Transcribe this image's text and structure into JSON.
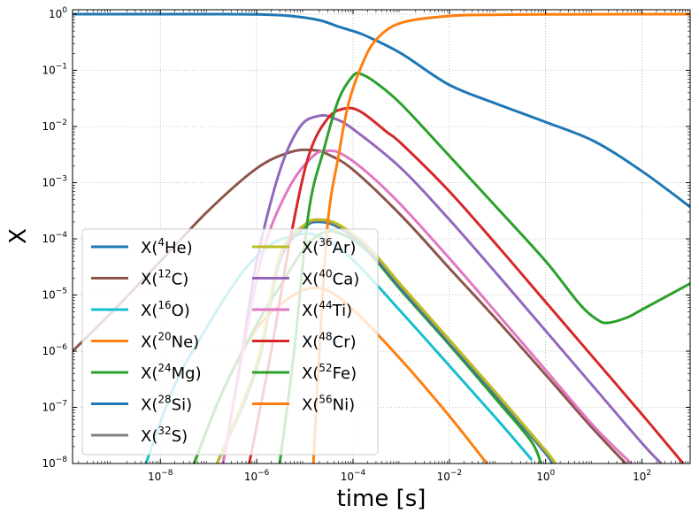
{
  "chart_data": {
    "type": "line",
    "xlabel": "time [s]",
    "ylabel": "X",
    "xscale": "log",
    "yscale": "log",
    "xlim": [
      1.5e-10,
      1000
    ],
    "ylim": [
      1e-08,
      1.2
    ],
    "grid": true,
    "legend_position": "lower-left",
    "legend_columns": 2,
    "x_ticks": [
      {
        "base": "10",
        "exp": "−8",
        "value": 1e-08
      },
      {
        "base": "10",
        "exp": "−6",
        "value": 1e-06
      },
      {
        "base": "10",
        "exp": "−4",
        "value": 0.0001
      },
      {
        "base": "10",
        "exp": "−2",
        "value": 0.01
      },
      {
        "base": "10",
        "exp": "0",
        "value": 1
      },
      {
        "base": "10",
        "exp": "2",
        "value": 100
      }
    ],
    "y_ticks": [
      {
        "base": "10",
        "exp": "−8",
        "value": 1e-08
      },
      {
        "base": "10",
        "exp": "−7",
        "value": 1e-07
      },
      {
        "base": "10",
        "exp": "−6",
        "value": 1e-06
      },
      {
        "base": "10",
        "exp": "−5",
        "value": 1e-05
      },
      {
        "base": "10",
        "exp": "−4",
        "value": 0.0001
      },
      {
        "base": "10",
        "exp": "−3",
        "value": 0.001
      },
      {
        "base": "10",
        "exp": "−2",
        "value": 0.01
      },
      {
        "base": "10",
        "exp": "−1",
        "value": 0.1
      },
      {
        "base": "10",
        "exp": "0",
        "value": 1
      }
    ],
    "series": [
      {
        "name_prefix": "X(",
        "mass": "4",
        "element": "He)",
        "color": "#1f77b4",
        "points": [
          [
            1.5e-10,
            1.0
          ],
          [
            1e-07,
            1.0
          ],
          [
            1e-06,
            0.99
          ],
          [
            5e-06,
            0.93
          ],
          [
            2e-05,
            0.78
          ],
          [
            5e-05,
            0.6
          ],
          [
            0.0001,
            0.5
          ],
          [
            0.0002,
            0.4
          ],
          [
            0.001,
            0.2
          ],
          [
            0.01,
            0.055
          ],
          [
            0.1,
            0.025
          ],
          [
            1,
            0.012
          ],
          [
            10,
            0.0055
          ],
          [
            100,
            0.0016
          ],
          [
            1000,
            0.00037
          ]
        ]
      },
      {
        "name_prefix": "X(",
        "mass": "12",
        "element": "C)",
        "color": "#8c564b",
        "points": [
          [
            1.5e-10,
            1e-06
          ],
          [
            1e-09,
            5e-06
          ],
          [
            1e-08,
            4e-05
          ],
          [
            1e-07,
            0.00032
          ],
          [
            1e-06,
            0.0018
          ],
          [
            5e-06,
            0.0035
          ],
          [
            1.5e-05,
            0.0038
          ],
          [
            3e-05,
            0.0032
          ],
          [
            0.0001,
            0.0017
          ],
          [
            0.001,
            0.00026
          ],
          [
            0.01,
            3e-05
          ],
          [
            0.1,
            3.5e-06
          ],
          [
            1,
            3.8e-07
          ],
          [
            10,
            4e-08
          ],
          [
            100,
            5e-09
          ]
        ]
      },
      {
        "name_prefix": "X(",
        "mass": "16",
        "element": "O)",
        "color": "#17becf",
        "points": [
          [
            5e-09,
            1e-08
          ],
          [
            2e-08,
            2.5e-07
          ],
          [
            1e-07,
            3e-06
          ],
          [
            5e-07,
            2.5e-05
          ],
          [
            2e-06,
            8e-05
          ],
          [
            8e-06,
            0.00012
          ],
          [
            2e-05,
            0.00011
          ],
          [
            0.0001,
            4.2e-05
          ],
          [
            0.001,
            5e-06
          ],
          [
            0.01,
            5.5e-07
          ],
          [
            0.1,
            6e-08
          ],
          [
            0.5,
            1.2e-08
          ]
        ]
      },
      {
        "name_prefix": "X(",
        "mass": "20",
        "element": "Ne)",
        "color": "#ff7f0e",
        "points": [
          [
            5e-08,
            1e-08
          ],
          [
            2e-07,
            2e-07
          ],
          [
            1e-06,
            2.5e-06
          ],
          [
            4e-06,
            8e-06
          ],
          [
            1.2e-05,
            1.3e-05
          ],
          [
            3e-05,
            1.2e-05
          ],
          [
            0.0001,
            5.5e-06
          ],
          [
            0.001,
            7e-07
          ],
          [
            0.01,
            7e-08
          ],
          [
            0.06,
            1e-08
          ]
        ]
      },
      {
        "name_prefix": "X(",
        "mass": "24",
        "element": "Mg)",
        "color": "#2ca02c",
        "points": [
          [
            5e-08,
            1e-08
          ],
          [
            2e-07,
            2e-07
          ],
          [
            1e-06,
            3e-06
          ],
          [
            3e-06,
            1.4e-05
          ],
          [
            1e-05,
            7e-05
          ],
          [
            2.5e-05,
            0.00013
          ],
          [
            6e-05,
            0.00012
          ],
          [
            0.0002,
            6e-05
          ],
          [
            0.001,
            1.2e-05
          ],
          [
            0.01,
            1.3e-06
          ],
          [
            0.1,
            1.3e-07
          ],
          [
            0.5,
            2.5e-08
          ],
          [
            0.8,
            1e-08
          ]
        ]
      },
      {
        "name_prefix": "X(",
        "mass": "28",
        "element": "Si)",
        "color": "#1f77b4",
        "points": [
          [
            1.5e-07,
            1e-08
          ],
          [
            1e-06,
            5e-07
          ],
          [
            3e-06,
            4e-05
          ],
          [
            1e-05,
            0.00016
          ],
          [
            2e-05,
            0.0002
          ],
          [
            5e-05,
            0.00016
          ],
          [
            0.0002,
            6.5e-05
          ],
          [
            0.001,
            1.3e-05
          ],
          [
            0.01,
            1.4e-06
          ],
          [
            0.1,
            1.5e-07
          ],
          [
            1,
            1.5e-08
          ],
          [
            1.3,
            1e-08
          ]
        ]
      },
      {
        "name_prefix": "X(",
        "mass": "32",
        "element": "S)",
        "color": "#7f7f7f",
        "points": [
          [
            1.5e-07,
            1e-08
          ],
          [
            1e-06,
            5e-07
          ],
          [
            3e-06,
            4.5e-05
          ],
          [
            1e-05,
            0.00017
          ],
          [
            2e-05,
            0.00021
          ],
          [
            5e-05,
            0.00017
          ],
          [
            0.0002,
            7e-05
          ],
          [
            0.001,
            1.4e-05
          ],
          [
            0.01,
            1.5e-06
          ],
          [
            0.1,
            1.6e-07
          ],
          [
            1,
            1.6e-08
          ],
          [
            1.5,
            1e-08
          ]
        ]
      },
      {
        "name_prefix": "X(",
        "mass": "36",
        "element": "Ar)",
        "color": "#bcbd22",
        "points": [
          [
            1.5e-07,
            1e-08
          ],
          [
            1e-06,
            6e-07
          ],
          [
            3e-06,
            5e-05
          ],
          [
            1e-05,
            0.00018
          ],
          [
            2e-05,
            0.00022
          ],
          [
            5e-05,
            0.00018
          ],
          [
            0.0002,
            7.5e-05
          ],
          [
            0.001,
            1.5e-05
          ],
          [
            0.01,
            1.6e-06
          ],
          [
            0.1,
            1.7e-07
          ],
          [
            1,
            1.7e-08
          ],
          [
            1.6,
            1e-08
          ]
        ]
      },
      {
        "name_prefix": "X(",
        "mass": "40",
        "element": "Ca)",
        "color": "#9467bd",
        "points": [
          [
            2e-07,
            1e-08
          ],
          [
            5e-07,
            1e-06
          ],
          [
            1e-06,
            4e-05
          ],
          [
            3e-06,
            0.0016
          ],
          [
            8e-06,
            0.01
          ],
          [
            2e-05,
            0.0155
          ],
          [
            4e-05,
            0.014
          ],
          [
            0.0001,
            0.009
          ],
          [
            0.001,
            0.0018
          ],
          [
            0.01,
            0.00022
          ],
          [
            0.1,
            2.3e-05
          ],
          [
            1,
            2.3e-06
          ],
          [
            10,
            2.3e-07
          ],
          [
            100,
            2.3e-08
          ],
          [
            250,
            1e-08
          ]
        ]
      },
      {
        "name_prefix": "X(",
        "mass": "44",
        "element": "Ti)",
        "color": "#e377c2",
        "points": [
          [
            2e-07,
            1e-08
          ],
          [
            6e-07,
            2e-06
          ],
          [
            1.5e-06,
            8e-05
          ],
          [
            5e-06,
            0.0009
          ],
          [
            1.5e-05,
            0.003
          ],
          [
            3e-05,
            0.0037
          ],
          [
            6e-05,
            0.0032
          ],
          [
            0.0002,
            0.0015
          ],
          [
            0.001,
            0.0004
          ],
          [
            0.01,
            4.5e-05
          ],
          [
            0.1,
            4.6e-06
          ],
          [
            1,
            4.6e-07
          ],
          [
            10,
            4.6e-08
          ],
          [
            60,
            1e-08
          ]
        ]
      },
      {
        "name_prefix": "X(",
        "mass": "48",
        "element": "Cr)",
        "color": "#d62728",
        "points": [
          [
            7e-07,
            1e-08
          ],
          [
            2e-06,
            1e-06
          ],
          [
            5e-06,
            0.0001
          ],
          [
            1.2e-05,
            0.003
          ],
          [
            3e-05,
            0.014
          ],
          [
            7e-05,
            0.021
          ],
          [
            0.00015,
            0.018
          ],
          [
            0.0005,
            0.008
          ],
          [
            0.001,
            0.005
          ],
          [
            0.01,
            0.0007
          ],
          [
            0.1,
            7.5e-05
          ],
          [
            1,
            7.5e-06
          ],
          [
            10,
            7.5e-07
          ],
          [
            100,
            7.5e-08
          ],
          [
            600,
            1.2e-08
          ],
          [
            700,
            1e-08
          ]
        ]
      },
      {
        "name_prefix": "X(",
        "mass": "52",
        "element": "Fe)",
        "color": "#2ca02c",
        "points": [
          [
            3e-06,
            1e-08
          ],
          [
            6e-06,
            1e-06
          ],
          [
            1.2e-05,
            0.0003
          ],
          [
            2.5e-05,
            0.004
          ],
          [
            5e-05,
            0.03
          ],
          [
            0.0001,
            0.08
          ],
          [
            0.00015,
            0.085
          ],
          [
            0.0003,
            0.06
          ],
          [
            0.001,
            0.025
          ],
          [
            0.01,
            0.003
          ],
          [
            0.1,
            0.00035
          ],
          [
            1,
            4e-05
          ],
          [
            5,
            7e-06
          ],
          [
            12,
            3.6e-06
          ],
          [
            20,
            3.2e-06
          ],
          [
            50,
            4e-06
          ],
          [
            100,
            5.5e-06
          ],
          [
            1000,
            1.6e-05
          ]
        ]
      },
      {
        "name_prefix": "X(",
        "mass": "56",
        "element": "Ni)",
        "color": "#ff7f0e",
        "points": [
          [
            1.5e-05,
            1e-08
          ],
          [
            2e-05,
            1e-06
          ],
          [
            3e-05,
            0.0002
          ],
          [
            5e-05,
            0.003
          ],
          [
            8e-05,
            0.025
          ],
          [
            0.00015,
            0.12
          ],
          [
            0.0003,
            0.35
          ],
          [
            0.001,
            0.7
          ],
          [
            0.01,
            0.93
          ],
          [
            0.1,
            0.98
          ],
          [
            1,
            0.99
          ],
          [
            100,
            1.0
          ],
          [
            1000,
            1.0
          ]
        ]
      }
    ]
  }
}
